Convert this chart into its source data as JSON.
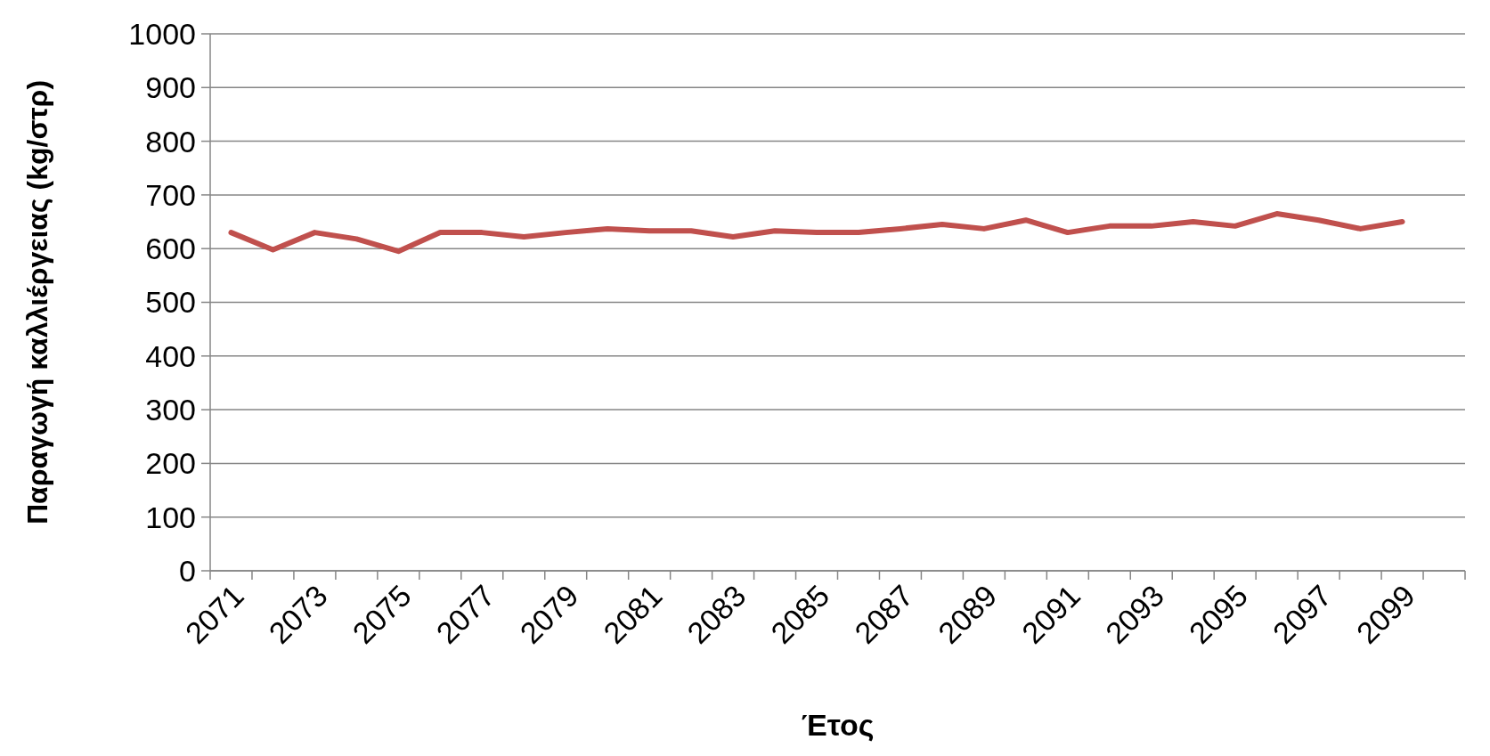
{
  "chart_data": {
    "type": "line",
    "xlabel": "Έτος",
    "ylabel": "Παραγωγή καλλιέργειας (kg/στρ)",
    "categories": [
      "2071",
      null,
      "2073",
      null,
      "2075",
      null,
      "2077",
      null,
      "2079",
      null,
      "2081",
      null,
      "2083",
      null,
      "2085",
      null,
      "2087",
      null,
      "2089",
      null,
      "2091",
      null,
      "2093",
      null,
      "2095",
      null,
      "2097",
      null,
      "2099",
      null
    ],
    "series": [
      {
        "color": "#c0504d",
        "values": [
          630,
          598,
          630,
          618,
          595,
          630,
          630,
          622,
          630,
          637,
          633,
          633,
          622,
          633,
          630,
          630,
          637,
          645,
          637,
          653,
          630,
          642,
          642,
          650,
          642,
          665,
          653,
          637,
          650,
          null
        ]
      }
    ],
    "ylim": [
      0,
      1000
    ],
    "yticks": [
      0,
      100,
      200,
      300,
      400,
      500,
      600,
      700,
      800,
      900,
      1000
    ],
    "grid": "y",
    "marker": "none",
    "line_style": "solid"
  }
}
